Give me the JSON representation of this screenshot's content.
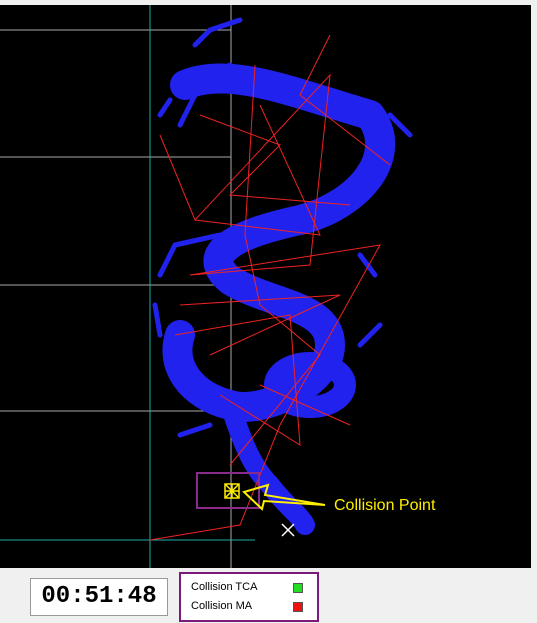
{
  "viewport": {
    "annotation": "Collision Point"
  },
  "status": {
    "time": "00:51:48",
    "legend": [
      "Collision TCA",
      "Collision MA"
    ]
  }
}
